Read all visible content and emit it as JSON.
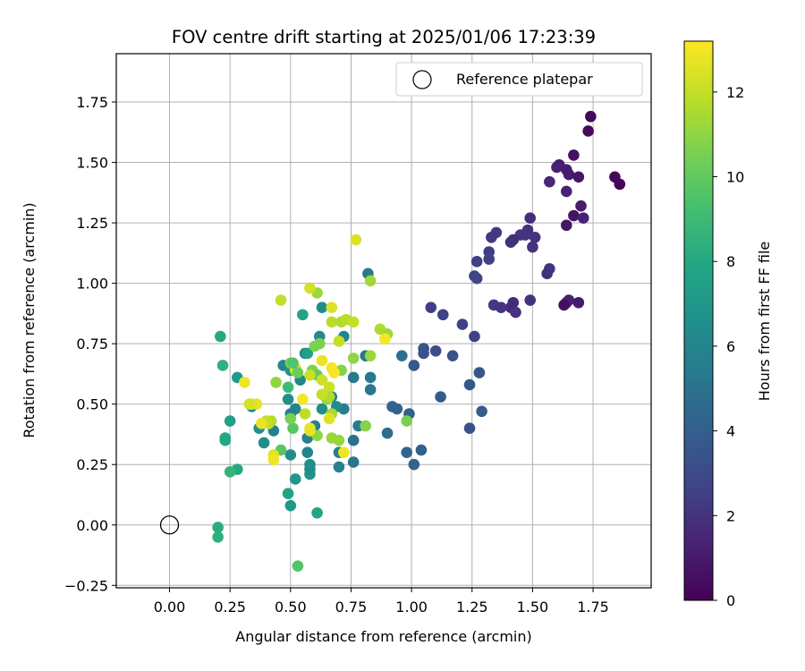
{
  "chart_data": {
    "type": "scatter",
    "title": "FOV centre drift starting at 2025/01/06 17:23:39",
    "xlabel": "Angular distance from reference (arcmin)",
    "ylabel": "Rotation from reference (arcmin)",
    "xlim": [
      -0.22,
      1.99
    ],
    "ylim": [
      -0.26,
      1.95
    ],
    "xticks": [
      "0.00",
      "0.25",
      "0.50",
      "0.75",
      "1.00",
      "1.25",
      "1.50",
      "1.75"
    ],
    "yticks": [
      "−0.25",
      "0.00",
      "0.25",
      "0.50",
      "0.75",
      "1.00",
      "1.25",
      "1.50",
      "1.75"
    ],
    "grid": true,
    "legend": {
      "placement": "top-right",
      "label": "Reference platepar"
    },
    "reference_point": {
      "x": 0.0,
      "y": 0.0
    },
    "colorbar": {
      "label": "Hours from first FF file",
      "colormap": "viridis",
      "range": [
        0,
        13.2
      ],
      "ticks": [
        "0",
        "2",
        "4",
        "6",
        "8",
        "10",
        "12"
      ]
    },
    "series": [
      {
        "points": [
          [
            1.74,
            1.69,
            0.3
          ],
          [
            1.73,
            1.63,
            0.3
          ],
          [
            1.84,
            1.44,
            0.2
          ],
          [
            1.86,
            1.41,
            0.2
          ],
          [
            1.67,
            1.53,
            0.6
          ],
          [
            1.61,
            1.49,
            1.0
          ],
          [
            1.6,
            1.48,
            1.2
          ],
          [
            1.64,
            1.47,
            1.1
          ],
          [
            1.65,
            1.45,
            1.0
          ],
          [
            1.69,
            1.44,
            0.8
          ],
          [
            1.57,
            1.42,
            1.5
          ],
          [
            1.64,
            1.38,
            1.3
          ],
          [
            1.7,
            1.32,
            1.0
          ],
          [
            1.67,
            1.28,
            0.7
          ],
          [
            1.71,
            1.27,
            1.3
          ],
          [
            1.64,
            1.24,
            0.8
          ],
          [
            1.49,
            1.27,
            1.8
          ],
          [
            1.48,
            1.22,
            1.9
          ],
          [
            1.47,
            1.2,
            2.0
          ],
          [
            1.45,
            1.2,
            2.1
          ],
          [
            1.51,
            1.19,
            2.0
          ],
          [
            1.5,
            1.15,
            2.0
          ],
          [
            1.42,
            1.18,
            1.8
          ],
          [
            1.41,
            1.17,
            1.9
          ],
          [
            1.35,
            1.21,
            2.3
          ],
          [
            1.33,
            1.19,
            2.2
          ],
          [
            1.32,
            1.13,
            2.4
          ],
          [
            1.32,
            1.1,
            2.5
          ],
          [
            1.27,
            1.09,
            2.5
          ],
          [
            1.26,
            1.03,
            2.6
          ],
          [
            1.27,
            1.02,
            2.8
          ],
          [
            1.57,
            1.06,
            2.0
          ],
          [
            1.56,
            1.04,
            1.9
          ],
          [
            1.49,
            0.93,
            2.0
          ],
          [
            1.65,
            0.93,
            1.3
          ],
          [
            1.64,
            0.92,
            1.2
          ],
          [
            1.69,
            0.92,
            1.0
          ],
          [
            1.63,
            0.91,
            0.5
          ],
          [
            1.42,
            0.92,
            1.7
          ],
          [
            1.41,
            0.9,
            1.6
          ],
          [
            1.43,
            0.88,
            2.0
          ],
          [
            1.34,
            0.91,
            2.2
          ],
          [
            1.37,
            0.9,
            2.1
          ],
          [
            1.08,
            0.9,
            2.4
          ],
          [
            1.13,
            0.87,
            2.6
          ],
          [
            1.21,
            0.83,
            2.5
          ],
          [
            1.26,
            0.78,
            2.6
          ],
          [
            1.05,
            0.73,
            3.4
          ],
          [
            1.05,
            0.71,
            3.3
          ],
          [
            1.1,
            0.72,
            3.1
          ],
          [
            1.17,
            0.7,
            3.3
          ],
          [
            1.01,
            0.66,
            3.7
          ],
          [
            1.28,
            0.63,
            3.6
          ],
          [
            1.24,
            0.58,
            3.6
          ],
          [
            1.12,
            0.53,
            3.8
          ],
          [
            1.29,
            0.47,
            3.9
          ],
          [
            0.96,
            0.7,
            4.8
          ],
          [
            0.92,
            0.49,
            4.3
          ],
          [
            0.94,
            0.48,
            4.2
          ],
          [
            0.99,
            0.46,
            4.1
          ],
          [
            1.24,
            0.4,
            3.4
          ],
          [
            0.98,
            0.3,
            4.3
          ],
          [
            1.04,
            0.31,
            4.1
          ],
          [
            1.01,
            0.25,
            4.2
          ],
          [
            0.9,
            0.38,
            4.7
          ],
          [
            0.82,
            1.04,
            5.3
          ],
          [
            0.81,
            0.7,
            5.3
          ],
          [
            0.83,
            0.61,
            5.3
          ],
          [
            0.83,
            0.56,
            5.2
          ],
          [
            0.76,
            0.61,
            5.4
          ],
          [
            0.76,
            0.35,
            5.0
          ],
          [
            0.76,
            0.26,
            5.1
          ],
          [
            0.78,
            0.41,
            5.5
          ],
          [
            0.72,
            0.48,
            5.6
          ],
          [
            0.72,
            0.78,
            6.0
          ],
          [
            0.7,
            0.3,
            5.8
          ],
          [
            0.7,
            0.24,
            5.8
          ],
          [
            0.69,
            0.49,
            6.5
          ],
          [
            0.67,
            0.53,
            5.8
          ],
          [
            0.63,
            0.9,
            6.3
          ],
          [
            0.63,
            0.48,
            6.5
          ],
          [
            0.62,
            0.78,
            6.2
          ],
          [
            0.6,
            0.41,
            5.6
          ],
          [
            0.57,
            0.36,
            5.8
          ],
          [
            0.57,
            0.3,
            6.0
          ],
          [
            0.58,
            0.25,
            6.6
          ],
          [
            0.58,
            0.21,
            6.8
          ],
          [
            0.58,
            0.23,
            6.5
          ],
          [
            0.56,
            0.71,
            6.0
          ],
          [
            0.54,
            0.6,
            6.0
          ],
          [
            0.52,
            0.48,
            6.0
          ],
          [
            0.5,
            0.46,
            5.8
          ],
          [
            0.49,
            0.52,
            6.5
          ],
          [
            0.47,
            0.66,
            6.0
          ],
          [
            0.5,
            0.64,
            6.8
          ],
          [
            0.5,
            0.29,
            6.5
          ],
          [
            0.52,
            0.19,
            7.0
          ],
          [
            0.49,
            0.13,
            7.7
          ],
          [
            0.5,
            0.08,
            7.0
          ],
          [
            0.61,
            0.05,
            7.8
          ],
          [
            0.55,
            0.87,
            7.8
          ],
          [
            0.57,
            0.71,
            7.5
          ],
          [
            0.43,
            0.39,
            5.8
          ],
          [
            0.39,
            0.34,
            6.3
          ],
          [
            0.34,
            0.49,
            6.4
          ],
          [
            0.37,
            0.4,
            6.7
          ],
          [
            0.28,
            0.61,
            7.1
          ],
          [
            0.25,
            0.43,
            7.6
          ],
          [
            0.21,
            0.78,
            8.0
          ],
          [
            0.22,
            0.66,
            8.5
          ],
          [
            0.23,
            0.36,
            8.0
          ],
          [
            0.23,
            0.35,
            7.9
          ],
          [
            0.28,
            0.23,
            8.0
          ],
          [
            0.25,
            0.22,
            8.6
          ],
          [
            0.2,
            -0.01,
            8.2
          ],
          [
            0.2,
            -0.05,
            8.4
          ],
          [
            0.53,
            -0.17,
            9.6
          ],
          [
            0.46,
            0.31,
            9.7
          ],
          [
            0.51,
            0.4,
            9.8
          ],
          [
            0.5,
            0.44,
            10.5
          ],
          [
            0.49,
            0.57,
            9.0
          ],
          [
            0.5,
            0.67,
            10.4
          ],
          [
            0.59,
            0.64,
            10.7
          ],
          [
            0.61,
            0.62,
            10.0
          ],
          [
            0.61,
            0.37,
            11.0
          ],
          [
            0.62,
            0.75,
            10.6
          ],
          [
            0.61,
            0.96,
            11.2
          ],
          [
            0.65,
            0.52,
            11.1
          ],
          [
            0.67,
            0.36,
            11.2
          ],
          [
            0.7,
            0.35,
            11.1
          ],
          [
            0.71,
            0.64,
            10.8
          ],
          [
            0.76,
            0.69,
            11.0
          ],
          [
            0.81,
            0.41,
            10.8
          ],
          [
            0.83,
            0.7,
            11.2
          ],
          [
            0.83,
            1.01,
            11.3
          ],
          [
            0.87,
            0.81,
            11.6
          ],
          [
            0.9,
            0.79,
            11.3
          ],
          [
            0.98,
            0.43,
            10.5
          ],
          [
            0.71,
            0.84,
            11.6
          ],
          [
            0.73,
            0.85,
            11.8
          ],
          [
            0.76,
            0.84,
            12.0
          ],
          [
            0.7,
            0.76,
            12.0
          ],
          [
            0.67,
            0.84,
            11.8
          ],
          [
            0.67,
            0.9,
            12.5
          ],
          [
            0.58,
            0.98,
            12.3
          ],
          [
            0.46,
            0.93,
            12.0
          ],
          [
            0.77,
            1.18,
            12.5
          ],
          [
            0.63,
            0.68,
            12.8
          ],
          [
            0.63,
            0.6,
            12.2
          ],
          [
            0.66,
            0.57,
            12.2
          ],
          [
            0.66,
            0.53,
            11.6
          ],
          [
            0.67,
            0.46,
            11.5
          ],
          [
            0.66,
            0.44,
            12.6
          ],
          [
            0.63,
            0.54,
            12.0
          ],
          [
            0.58,
            0.62,
            12.1
          ],
          [
            0.55,
            0.52,
            13.0
          ],
          [
            0.52,
            0.64,
            12.2
          ],
          [
            0.52,
            0.65,
            12.4
          ],
          [
            0.56,
            0.46,
            11.9
          ],
          [
            0.58,
            0.4,
            12.8
          ],
          [
            0.58,
            0.39,
            12.7
          ],
          [
            0.67,
            0.65,
            13.0
          ],
          [
            0.68,
            0.63,
            13.1
          ],
          [
            0.72,
            0.3,
            12.9
          ],
          [
            0.89,
            0.77,
            13.0
          ],
          [
            0.41,
            0.42,
            12.1
          ],
          [
            0.42,
            0.43,
            11.7
          ],
          [
            0.43,
            0.29,
            12.6
          ],
          [
            0.43,
            0.27,
            12.9
          ],
          [
            0.4,
            0.43,
            12.0
          ],
          [
            0.38,
            0.42,
            12.8
          ],
          [
            0.36,
            0.5,
            12.8
          ],
          [
            0.34,
            0.5,
            12.6
          ],
          [
            0.31,
            0.59,
            12.9
          ],
          [
            0.33,
            0.5,
            12.4
          ],
          [
            0.44,
            0.59,
            11.0
          ],
          [
            0.53,
            0.63,
            10.2
          ],
          [
            0.6,
            0.74,
            10.6
          ],
          [
            0.51,
            0.67,
            9.6
          ]
        ]
      }
    ]
  }
}
